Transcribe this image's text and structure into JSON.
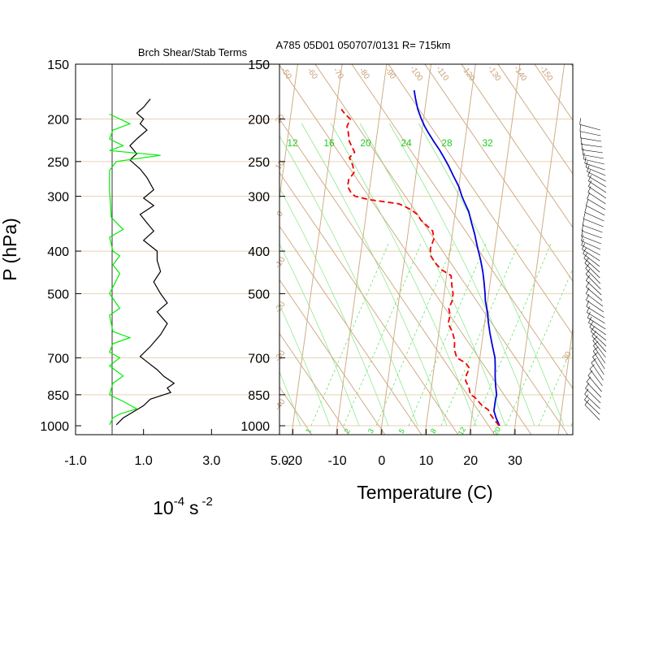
{
  "chart_data": [
    {
      "type": "line",
      "title": "Brch Shear/Stab Terms",
      "xlabel": "10",
      "xlabel_exponent": "-4",
      "xlabel_unit": "s",
      "xlabel_unit_exponent": "-2",
      "ylabel": "P (hPa)",
      "y_scale": "log",
      "y_reversed": true,
      "xlim": [
        -1.0,
        5.0
      ],
      "ylim": [
        1000,
        150
      ],
      "x_ticks": [
        -1.0,
        1.0,
        3.0,
        5.0
      ],
      "x_tick_labels": [
        "-1.0",
        "1.0",
        "3.0",
        "5.0"
      ],
      "y_ticks": [
        150,
        200,
        250,
        300,
        400,
        500,
        700,
        850,
        1000
      ],
      "y_tick_labels": [
        "150",
        "200",
        "250",
        "300",
        "400",
        "500",
        "700",
        "850",
        "1000"
      ],
      "series": [
        {
          "color": "#000000",
          "points": [
            [
              1.2,
              180
            ],
            [
              1.0,
              188
            ],
            [
              0.8,
              194
            ],
            [
              1.0,
              200
            ],
            [
              0.9,
              205
            ],
            [
              1.1,
              212
            ],
            [
              0.8,
              222
            ],
            [
              0.6,
              230
            ],
            [
              0.8,
              240
            ],
            [
              0.6,
              248
            ],
            [
              0.9,
              260
            ],
            [
              1.1,
              272
            ],
            [
              1.3,
              290
            ],
            [
              1.0,
              303
            ],
            [
              1.3,
              315
            ],
            [
              0.9,
              330
            ],
            [
              1.1,
              345
            ],
            [
              1.3,
              360
            ],
            [
              1.0,
              378
            ],
            [
              1.4,
              400
            ],
            [
              1.4,
              420
            ],
            [
              1.5,
              445
            ],
            [
              1.3,
              470
            ],
            [
              1.5,
              500
            ],
            [
              1.7,
              525
            ],
            [
              1.4,
              550
            ],
            [
              1.7,
              585
            ],
            [
              1.5,
              620
            ],
            [
              1.2,
              660
            ],
            [
              0.9,
              695
            ],
            [
              1.1,
              715
            ],
            [
              1.4,
              745
            ],
            [
              1.6,
              772
            ],
            [
              1.9,
              800
            ],
            [
              1.7,
              820
            ],
            [
              1.8,
              840
            ],
            [
              1.2,
              870
            ],
            [
              1.0,
              900
            ],
            [
              0.4,
              960
            ],
            [
              0.2,
              995
            ]
          ]
        },
        {
          "color": "#00ee00",
          "points": [
            [
              0.0,
              195
            ],
            [
              0.6,
              205
            ],
            [
              0.1,
              212
            ],
            [
              0.0,
              222
            ],
            [
              0.4,
              230
            ],
            [
              0.0,
              236
            ],
            [
              1.5,
              242
            ],
            [
              0.2,
              250
            ],
            [
              0.0,
              262
            ],
            [
              0.0,
              290
            ],
            [
              0.05,
              335
            ],
            [
              0.4,
              357
            ],
            [
              0.0,
              372
            ],
            [
              0.1,
              400
            ],
            [
              0.3,
              410
            ],
            [
              0.1,
              430
            ],
            [
              0.3,
              450
            ],
            [
              0.0,
              500
            ],
            [
              0.3,
              540
            ],
            [
              0.0,
              560
            ],
            [
              0.1,
              610
            ],
            [
              0.6,
              630
            ],
            [
              0.1,
              650
            ],
            [
              0.0,
              680
            ],
            [
              0.3,
              700
            ],
            [
              0.0,
              730
            ],
            [
              0.4,
              770
            ],
            [
              0.1,
              800
            ],
            [
              0.0,
              850
            ],
            [
              0.4,
              880
            ],
            [
              0.8,
              915
            ],
            [
              0.3,
              940
            ],
            [
              0.1,
              960
            ],
            [
              0.0,
              995
            ]
          ]
        }
      ]
    },
    {
      "type": "line",
      "title": "A785 05D01 050707/0131 R= 715km",
      "xlabel": "Temperature (C)",
      "x_scale": "skew-T",
      "y_scale": "log",
      "y_reversed": true,
      "xlim": [
        -23,
        43
      ],
      "ylim": [
        1000,
        150
      ],
      "x_ticks": [
        -20,
        -10,
        0,
        10,
        20,
        30
      ],
      "x_tick_labels": [
        "-20",
        "-10",
        "0",
        "10",
        "20",
        "30"
      ],
      "y_ticks": [
        150,
        200,
        250,
        300,
        400,
        500,
        700,
        850,
        1000
      ],
      "y_tick_labels": [
        "150",
        "200",
        "250",
        "300",
        "400",
        "500",
        "700",
        "850",
        "1000"
      ],
      "isotherm_labels": [
        "-40",
        "-30",
        "-20",
        "-10",
        "0",
        "10",
        "20",
        "30"
      ],
      "dry_adiabat_labels": [
        "-50",
        "-60",
        "-70",
        "-80",
        "-90",
        "-100",
        "-110",
        "-120",
        "-130",
        "-140",
        "-150"
      ],
      "mixing_ratio_labels_bottom": [
        "1",
        "2",
        "3",
        "5",
        "8",
        "12",
        "20"
      ],
      "moist_adiabat_labels_top": [
        "12",
        "16",
        "20",
        "24",
        "28",
        "32"
      ],
      "series": [
        {
          "name": "temperature",
          "color": "#0000dd",
          "style": "solid",
          "points": [
            [
              26.5,
              1000
            ],
            [
              25.5,
              960
            ],
            [
              24.8,
              925
            ],
            [
              24.8,
              880
            ],
            [
              24.9,
              850
            ],
            [
              24.4,
              810
            ],
            [
              24.0,
              770
            ],
            [
              23.7,
              730
            ],
            [
              23.4,
              700
            ],
            [
              22.5,
              660
            ],
            [
              21.5,
              615
            ],
            [
              20.8,
              580
            ],
            [
              20.3,
              550
            ],
            [
              19.5,
              520
            ],
            [
              19.2,
              500
            ],
            [
              18.6,
              470
            ],
            [
              18.0,
              445
            ],
            [
              17.2,
              420
            ],
            [
              16.0,
              390
            ],
            [
              15.0,
              365
            ],
            [
              14.0,
              345
            ],
            [
              13.0,
              325
            ],
            [
              11.8,
              310
            ],
            [
              11.0,
              300
            ],
            [
              10.0,
              285
            ],
            [
              8.5,
              270
            ],
            [
              7.0,
              255
            ],
            [
              5.8,
              245
            ],
            [
              4.5,
              235
            ],
            [
              3.0,
              225
            ],
            [
              1.5,
              215
            ],
            [
              0.5,
              208
            ],
            [
              -0.5,
              200
            ],
            [
              -1.6,
              190
            ],
            [
              -2.4,
              180
            ],
            [
              -3.0,
              172
            ]
          ]
        },
        {
          "name": "dewpoint",
          "color": "#ee0000",
          "style": "dashed",
          "points": [
            [
              26.4,
              1000
            ],
            [
              25.0,
              965
            ],
            [
              24.0,
              940
            ],
            [
              23.5,
              920
            ],
            [
              22.0,
              900
            ],
            [
              21.0,
              880
            ],
            [
              20.0,
              860
            ],
            [
              19.0,
              850
            ],
            [
              18.5,
              820
            ],
            [
              17.5,
              790
            ],
            [
              17.5,
              765
            ],
            [
              18.0,
              740
            ],
            [
              17.0,
              720
            ],
            [
              14.8,
              700
            ],
            [
              14.0,
              670
            ],
            [
              13.8,
              640
            ],
            [
              13.0,
              610
            ],
            [
              11.8,
              585
            ],
            [
              12.0,
              560
            ],
            [
              11.5,
              540
            ],
            [
              12.0,
              520
            ],
            [
              12.0,
              500
            ],
            [
              11.5,
              480
            ],
            [
              11.0,
              455
            ],
            [
              8.5,
              440
            ],
            [
              7.0,
              425
            ],
            [
              5.8,
              410
            ],
            [
              5.5,
              395
            ],
            [
              6.0,
              375
            ],
            [
              5.5,
              360
            ],
            [
              4.0,
              350
            ],
            [
              2.5,
              340
            ],
            [
              1.5,
              330
            ],
            [
              0.0,
              322
            ],
            [
              -2.0,
              315
            ],
            [
              -3.0,
              312
            ],
            [
              -10.0,
              305
            ],
            [
              -13.0,
              300
            ],
            [
              -14.0,
              295
            ],
            [
              -15.0,
              285
            ],
            [
              -15.0,
              275
            ],
            [
              -14.0,
              265
            ],
            [
              -14.5,
              255
            ],
            [
              -15.5,
              245
            ],
            [
              -14.5,
              238
            ],
            [
              -16.0,
              225
            ],
            [
              -16.5,
              215
            ],
            [
              -17.0,
              208
            ],
            [
              -16.5,
              200
            ],
            [
              -17.8,
              195
            ],
            [
              -18.8,
              190
            ]
          ]
        }
      ]
    }
  ]
}
